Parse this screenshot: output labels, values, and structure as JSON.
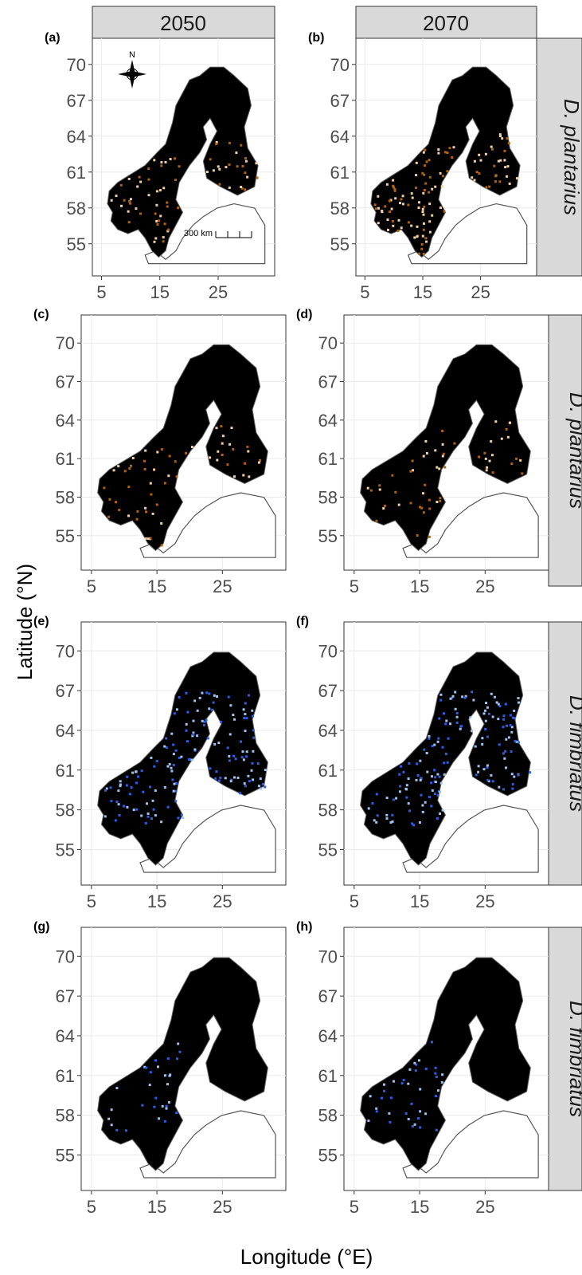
{
  "figure": {
    "y_axis_title": "Latitude (°N)",
    "x_axis_title": "Longitude (°E)",
    "column_strips": [
      "2050",
      "2070"
    ],
    "row_strips": [
      "D. plantarius",
      "D. plantarius",
      "D. fimbriatus",
      "D. fimbriatus"
    ],
    "lat_ticks": [
      "70",
      "67",
      "64",
      "61",
      "58",
      "55"
    ],
    "lon_ticks": [
      "5",
      "15",
      "25"
    ],
    "north_label": "N",
    "scale_bar_label": "300 km",
    "panels": [
      {
        "tag": "(a)",
        "row": 0,
        "col": 0,
        "fill_color": "#f2cfa6",
        "dark_fill": "#b0620e",
        "coverage": 0.35,
        "scheme": "plantarius-light"
      },
      {
        "tag": "(b)",
        "row": 0,
        "col": 1,
        "fill_color": "#f2cfa6",
        "dark_fill": "#b0620e",
        "coverage": 0.55,
        "scheme": "plantarius-dark"
      },
      {
        "tag": "(c)",
        "row": 1,
        "col": 0,
        "fill_color": "#f2cfa6",
        "dark_fill": "#b0620e",
        "coverage": 0.25,
        "scheme": "plantarius-light"
      },
      {
        "tag": "(d)",
        "row": 1,
        "col": 1,
        "fill_color": "#f2cfa6",
        "dark_fill": "#b0620e",
        "coverage": 0.3,
        "scheme": "plantarius-dark"
      },
      {
        "tag": "(e)",
        "row": 2,
        "col": 0,
        "fill_color": "#9ec3f0",
        "dark_fill": "#2e5ee6",
        "coverage": 0.7,
        "scheme": "fimbriatus-wide"
      },
      {
        "tag": "(f)",
        "row": 2,
        "col": 1,
        "fill_color": "#9ec3f0",
        "dark_fill": "#2e5ee6",
        "coverage": 0.7,
        "scheme": "fimbriatus-wide"
      },
      {
        "tag": "(g)",
        "row": 3,
        "col": 0,
        "fill_color": "#9ec3f0",
        "dark_fill": "#2e5ee6",
        "coverage": 0.3,
        "scheme": "fimbriatus-west"
      },
      {
        "tag": "(h)",
        "row": 3,
        "col": 1,
        "fill_color": "#9ec3f0",
        "dark_fill": "#2e5ee6",
        "coverage": 0.35,
        "scheme": "fimbriatus-west"
      }
    ]
  }
}
